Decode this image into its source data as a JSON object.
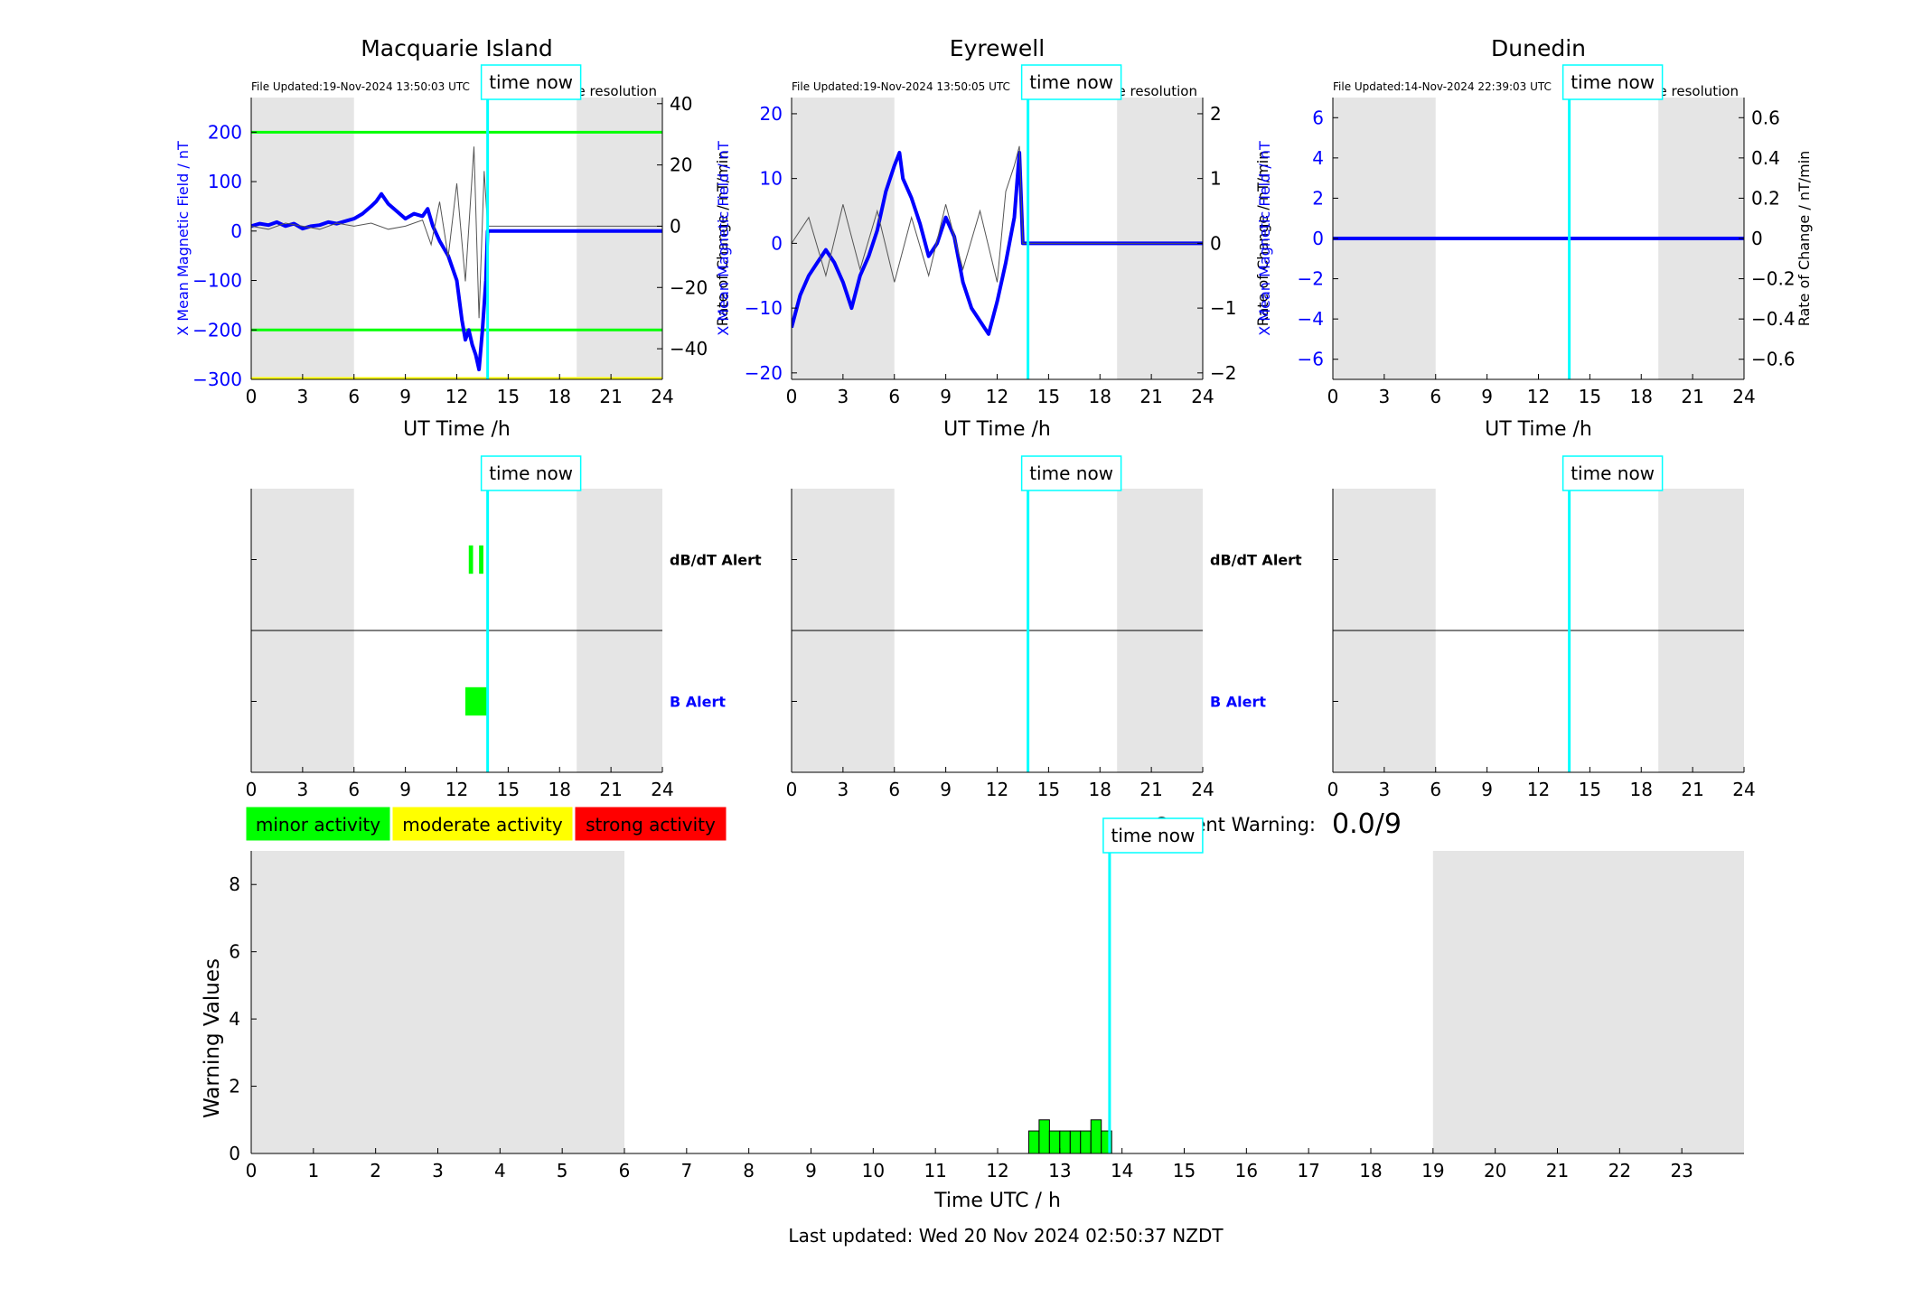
{
  "legend": {
    "minor": "minor activity",
    "moderate": "moderate activity",
    "strong": "strong activity",
    "colors": {
      "minor": "#00ff00",
      "moderate": "#ffff00",
      "strong": "#ff0000"
    }
  },
  "current_warning": {
    "label": "Current Warning:",
    "value": "0.0/9"
  },
  "footer": {
    "last_updated": "Last updated: Wed 20 Nov 2024 02:50:37 NZDT"
  },
  "colors": {
    "night_shade": "#e5e5e5",
    "time_now": "#00ffff",
    "mag_series": "#0000ff",
    "rate_series": "#555555",
    "threshold": "#00ff00",
    "bottom_threshold": "#ffff00",
    "b_alert": "#0000ff"
  },
  "chart_data": [
    {
      "type": "line",
      "title": "Macquarie Island",
      "file_updated": "File Updated:19-Nov-2024 13:50:03 UTC",
      "resolution": "minute resolution",
      "xlabel": "UT Time /h",
      "ylabel": "X Mean Magnetic Field / nT",
      "y2label": "Rate of Change / nT/min",
      "xlim": [
        0,
        24
      ],
      "ylim": [
        -300,
        270
      ],
      "y2lim": [
        -50,
        42
      ],
      "xticks": [
        0,
        3,
        6,
        9,
        12,
        15,
        18,
        21,
        24
      ],
      "yticks": [
        -300,
        -200,
        -100,
        0,
        100,
        200
      ],
      "y2ticks": [
        -40,
        -20,
        0,
        20,
        40
      ],
      "night_shading": [
        [
          0,
          6
        ],
        [
          19,
          24
        ]
      ],
      "time_now": 13.8,
      "time_now_label": "time now",
      "thresholds": [
        200,
        -200
      ],
      "bottom_threshold": -300,
      "series": [
        {
          "axis": "left",
          "x": [
            0,
            0.5,
            1,
            1.5,
            2,
            2.5,
            3,
            3.5,
            4,
            4.5,
            5,
            5.5,
            6,
            6.5,
            7,
            7.3,
            7.6,
            8,
            8.5,
            9,
            9.5,
            10,
            10.3,
            10.6,
            11,
            11.5,
            12,
            12.3,
            12.5,
            12.7,
            12.9,
            13.1,
            13.3,
            13.5,
            13.7,
            13.8,
            24
          ],
          "values": [
            10,
            15,
            12,
            18,
            10,
            15,
            5,
            10,
            12,
            18,
            15,
            20,
            25,
            35,
            50,
            60,
            75,
            55,
            40,
            25,
            35,
            30,
            45,
            10,
            -20,
            -50,
            -100,
            -180,
            -220,
            -200,
            -230,
            -250,
            -280,
            -200,
            -100,
            0,
            0
          ]
        },
        {
          "axis": "right",
          "x": [
            0,
            1,
            2,
            3,
            4,
            5,
            6,
            7,
            8,
            9,
            10,
            10.5,
            11,
            11.5,
            12,
            12.5,
            13,
            13.3,
            13.6,
            13.8,
            24
          ],
          "values": [
            0,
            -1,
            1,
            0,
            -1,
            1,
            0,
            1,
            -1,
            0,
            2,
            -6,
            8,
            -10,
            14,
            -18,
            26,
            -30,
            18,
            0,
            0
          ]
        }
      ]
    },
    {
      "type": "line",
      "title": "Eyrewell",
      "file_updated": "File Updated:19-Nov-2024 13:50:05 UTC",
      "resolution": "minute resolution",
      "xlabel": "UT Time /h",
      "ylabel": "X Mean Magnetic Field / nT",
      "y2label": "Rate of Change / nT/min",
      "xlim": [
        0,
        24
      ],
      "ylim": [
        -21,
        22.5
      ],
      "y2lim": [
        -2.1,
        2.25
      ],
      "xticks": [
        0,
        3,
        6,
        9,
        12,
        15,
        18,
        21,
        24
      ],
      "yticks": [
        -20,
        -10,
        0,
        10,
        20
      ],
      "y2ticks": [
        -2,
        -1,
        0,
        1,
        2
      ],
      "night_shading": [
        [
          0,
          6
        ],
        [
          19,
          24
        ]
      ],
      "time_now": 13.8,
      "time_now_label": "time now",
      "series": [
        {
          "axis": "left",
          "x": [
            0,
            0.5,
            1,
            1.5,
            2,
            2.5,
            3,
            3.5,
            4,
            4.5,
            5,
            5.5,
            6,
            6.3,
            6.5,
            7,
            7.5,
            8,
            8.5,
            9,
            9.5,
            10,
            10.5,
            11,
            11.5,
            12,
            12.5,
            13,
            13.3,
            13.5,
            24
          ],
          "values": [
            -13,
            -8,
            -5,
            -3,
            -1,
            -3,
            -6,
            -10,
            -5,
            -2,
            2,
            8,
            12,
            14,
            10,
            7,
            3,
            -2,
            0,
            4,
            1,
            -6,
            -10,
            -12,
            -14,
            -9,
            -3,
            4,
            14,
            0,
            0
          ]
        },
        {
          "axis": "right",
          "x": [
            0,
            1,
            2,
            3,
            4,
            5,
            6,
            7,
            8,
            9,
            10,
            11,
            12,
            12.5,
            13,
            13.3,
            13.5,
            24
          ],
          "values": [
            0,
            0.4,
            -0.5,
            0.6,
            -0.4,
            0.5,
            -0.6,
            0.4,
            -0.5,
            0.6,
            -0.4,
            0.5,
            -0.6,
            0.8,
            1.2,
            1.5,
            0,
            0
          ]
        }
      ]
    },
    {
      "type": "line",
      "title": "Dunedin",
      "file_updated": "File Updated:14-Nov-2024 22:39:03 UTC",
      "resolution": "minute resolution",
      "xlabel": "UT Time /h",
      "ylabel": "X Mean Magnetic Field / nT",
      "y2label": "Rate of Change / nT/min",
      "xlim": [
        0,
        24
      ],
      "ylim": [
        -7,
        7
      ],
      "y2lim": [
        -0.7,
        0.7
      ],
      "xticks": [
        0,
        3,
        6,
        9,
        12,
        15,
        18,
        21,
        24
      ],
      "yticks": [
        -6,
        -4,
        -2,
        0,
        2,
        4,
        6
      ],
      "y2ticks": [
        -0.6,
        -0.4,
        -0.2,
        0,
        0.2,
        0.4,
        0.6
      ],
      "night_shading": [
        [
          0,
          6
        ],
        [
          19,
          24
        ]
      ],
      "time_now": 13.8,
      "time_now_label": "time now",
      "series": [
        {
          "axis": "left",
          "x": [
            0,
            24
          ],
          "values": [
            0,
            0
          ]
        }
      ]
    },
    {
      "type": "bar",
      "title": "",
      "xlim": [
        0,
        24
      ],
      "xticks": [
        0,
        3,
        6,
        9,
        12,
        15,
        18,
        21,
        24
      ],
      "night_shading": [
        [
          0,
          6
        ],
        [
          19,
          24
        ]
      ],
      "time_now": 13.8,
      "time_now_label": "time now",
      "alert_labels": [
        "dB/dT Alert",
        "B Alert"
      ],
      "db_dt_alerts": [
        [
          12.7,
          12.95
        ],
        [
          13.3,
          13.55
        ]
      ],
      "b_alerts": [
        [
          12.5,
          13.8
        ]
      ]
    },
    {
      "type": "bar",
      "title": "",
      "xlim": [
        0,
        24
      ],
      "xticks": [
        0,
        3,
        6,
        9,
        12,
        15,
        18,
        21,
        24
      ],
      "night_shading": [
        [
          0,
          6
        ],
        [
          19,
          24
        ]
      ],
      "time_now": 13.8,
      "time_now_label": "time now",
      "alert_labels": [
        "dB/dT Alert",
        "B Alert"
      ],
      "db_dt_alerts": [],
      "b_alerts": []
    },
    {
      "type": "bar",
      "title": "",
      "xlim": [
        0,
        24
      ],
      "xticks": [
        0,
        3,
        6,
        9,
        12,
        15,
        18,
        21,
        24
      ],
      "night_shading": [
        [
          0,
          6
        ],
        [
          19,
          24
        ]
      ],
      "time_now": 13.8,
      "time_now_label": "time now",
      "alert_labels": [
        "",
        ""
      ],
      "db_dt_alerts": [],
      "b_alerts": []
    },
    {
      "type": "bar",
      "title": "",
      "xlabel": "Time UTC / h",
      "ylabel": "Warning Values",
      "xlim": [
        0,
        24
      ],
      "ylim": [
        0,
        9
      ],
      "xticks": [
        0,
        1,
        2,
        3,
        4,
        5,
        6,
        7,
        8,
        9,
        10,
        11,
        12,
        13,
        14,
        15,
        16,
        17,
        18,
        19,
        20,
        21,
        22,
        23
      ],
      "yticks": [
        0,
        2,
        4,
        6,
        8
      ],
      "night_shading": [
        [
          0,
          6
        ],
        [
          19,
          24
        ]
      ],
      "time_now": 13.8,
      "time_now_label": "time now",
      "bin_width": 0.1667,
      "bars": {
        "x": [
          12.5,
          12.667,
          12.833,
          13.0,
          13.167,
          13.333,
          13.5,
          13.667
        ],
        "values": [
          0.67,
          1.0,
          0.67,
          0.67,
          0.67,
          0.67,
          1.0,
          0.67
        ]
      }
    }
  ]
}
